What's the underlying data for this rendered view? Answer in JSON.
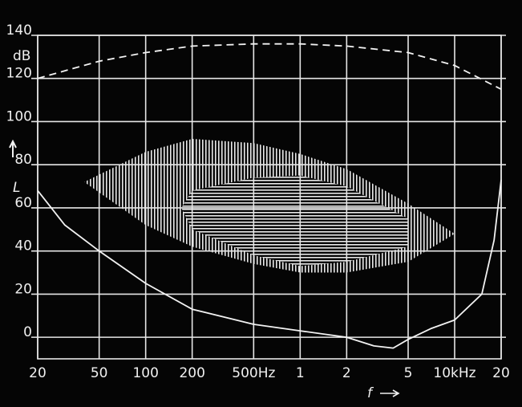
{
  "chart_data": {
    "type": "line",
    "x_label": "f",
    "y_label": "L",
    "y_unit": "dB",
    "xscale": "log",
    "xlim": [
      20,
      20000
    ],
    "ylim": [
      -10,
      140
    ],
    "xticks": [
      20,
      50,
      100,
      200,
      {
        "value": 500,
        "label": "500Hz"
      },
      {
        "value": 1000,
        "label": "1"
      },
      {
        "value": 2000,
        "label": "2"
      },
      {
        "value": 5000,
        "label": "5"
      },
      {
        "value": 10000,
        "label": "10kHz"
      },
      {
        "value": 20000,
        "label": "20"
      }
    ],
    "yticks": [
      0,
      20,
      40,
      60,
      80,
      100,
      120,
      140
    ],
    "grid": true,
    "series": [
      {
        "kind": "line",
        "dash": true,
        "color": "#f2f2f2",
        "x": [
          20,
          50,
          100,
          200,
          500,
          1000,
          2000,
          5000,
          10000,
          20000
        ],
        "values": [
          120,
          128,
          132,
          135,
          136,
          136,
          135,
          132,
          126,
          115
        ]
      },
      {
        "kind": "line",
        "dash": false,
        "color": "#f2f2f2",
        "x": [
          20,
          30,
          50,
          100,
          200,
          500,
          1000,
          2000,
          3000,
          4000,
          5000,
          7000,
          10000,
          15000,
          18000,
          20000
        ],
        "values": [
          68,
          52,
          40,
          25,
          13,
          6,
          3,
          0,
          -4,
          -5,
          -1,
          4,
          8,
          20,
          45,
          73
        ]
      },
      {
        "kind": "region",
        "hatch": "vertical",
        "color": "#e8e8e8",
        "x": [
          40,
          100,
          200,
          500,
          1000,
          2000,
          5000,
          10000,
          5000,
          2000,
          1000,
          500,
          200,
          100
        ],
        "values": [
          72,
          86,
          92,
          90,
          85,
          78,
          62,
          48,
          35,
          30,
          30,
          34,
          42,
          52
        ]
      },
      {
        "kind": "region",
        "hatch": "horizontal",
        "color": "#e8e8e8",
        "x": [
          170,
          200,
          500,
          1000,
          2000,
          5000,
          5000,
          2000,
          1000,
          500,
          200
        ],
        "values": [
          60,
          68,
          74,
          75,
          70,
          55,
          42,
          35,
          33,
          38,
          50
        ]
      }
    ]
  }
}
